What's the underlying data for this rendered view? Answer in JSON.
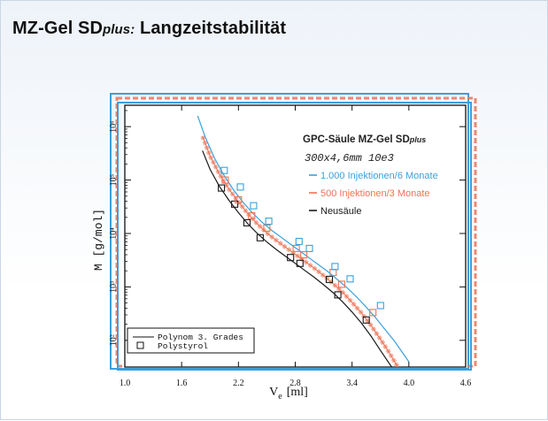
{
  "page": {
    "title_main": "MZ-Gel SD",
    "title_plus": "plus:",
    "title_rest": " Langzeitstabilität"
  },
  "chart_data": {
    "type": "scatter",
    "title": "GPC-Säule MZ-Gel SD",
    "title_plus": "plus",
    "subtitle": "300x4,6mm 10e3",
    "xlabel": "V",
    "xlabel_sub": "e",
    "xlabel_unit": "[ml]",
    "ylabel": "M [g/mol]",
    "xlim": [
      1.0,
      4.6
    ],
    "ylim_log10": [
      1.5,
      6.4
    ],
    "y_scale": "log",
    "x_ticks": [
      "1.0",
      "1.6",
      "2.2",
      "2.8",
      "3.4",
      "4.0",
      "4.6"
    ],
    "x_tick_values": [
      1.0,
      1.6,
      2.2,
      2.8,
      3.4,
      4.0,
      4.6
    ],
    "y_ticks": [
      "10²",
      "10³",
      "10⁴",
      "10⁵",
      "10⁶"
    ],
    "y_tick_exponents": [
      2,
      3,
      4,
      5,
      6
    ],
    "legend_placement": "top-right",
    "legend2_placement": "bottom-left",
    "legend2": {
      "line_label": "Polynom 3. Grades",
      "marker_label": "Polystyrol"
    },
    "colors": {
      "neu": "#1a1a1a",
      "m3": "#ee7355",
      "m6": "#3aa0dd"
    },
    "series": [
      {
        "name": "Neusäule",
        "key": "neu",
        "x": [
          2.02,
          2.16,
          2.29,
          2.43,
          2.75,
          2.85,
          3.16,
          3.25,
          3.55
        ],
        "y": [
          4.85,
          4.55,
          4.2,
          3.92,
          3.55,
          3.44,
          3.14,
          2.85,
          2.38
        ],
        "curve_x": [
          1.82,
          1.9,
          2.0,
          2.1,
          2.2,
          2.3,
          2.4,
          2.5,
          2.6,
          2.7,
          2.8,
          2.9,
          3.0,
          3.1,
          3.2,
          3.3,
          3.4,
          3.5,
          3.6,
          3.7,
          3.8,
          3.92
        ],
        "curve_y": [
          5.55,
          5.2,
          4.88,
          4.62,
          4.39,
          4.18,
          4.0,
          3.84,
          3.7,
          3.57,
          3.44,
          3.31,
          3.18,
          3.04,
          2.89,
          2.72,
          2.53,
          2.32,
          2.08,
          1.81,
          1.55,
          1.25
        ]
      },
      {
        "name": "500 Injektionen/3 Monate",
        "key": "m3",
        "x": [
          2.06,
          2.2,
          2.34,
          2.5,
          2.81,
          2.89,
          3.2,
          3.29,
          3.62
        ],
        "y": [
          5.0,
          4.63,
          4.33,
          4.1,
          3.72,
          3.6,
          3.27,
          3.05,
          2.52
        ],
        "curve_x": [
          1.82,
          1.9,
          2.0,
          2.1,
          2.2,
          2.3,
          2.4,
          2.5,
          2.6,
          2.7,
          2.8,
          2.9,
          3.0,
          3.1,
          3.2,
          3.3,
          3.4,
          3.5,
          3.6,
          3.7,
          3.8,
          3.95
        ],
        "curve_y": [
          5.82,
          5.45,
          5.11,
          4.83,
          4.59,
          4.37,
          4.18,
          4.01,
          3.87,
          3.74,
          3.61,
          3.48,
          3.35,
          3.21,
          3.06,
          2.9,
          2.71,
          2.51,
          2.28,
          2.02,
          1.75,
          1.3
        ]
      },
      {
        "name": "1.000 Injektionen/6 Monate",
        "key": "m6",
        "x": [
          2.05,
          2.22,
          2.36,
          2.52,
          2.84,
          2.95,
          3.22,
          3.38,
          3.7
        ],
        "y": [
          5.18,
          4.87,
          4.52,
          4.23,
          3.85,
          3.72,
          3.38,
          3.15,
          2.65
        ],
        "curve_x": [
          1.77,
          1.85,
          1.95,
          2.05,
          2.15,
          2.25,
          2.35,
          2.45,
          2.55,
          2.65,
          2.75,
          2.85,
          2.95,
          3.05,
          3.15,
          3.25,
          3.35,
          3.45,
          3.55,
          3.65,
          3.75,
          3.85,
          4.0
        ],
        "curve_y": [
          6.2,
          5.8,
          5.4,
          5.08,
          4.81,
          4.58,
          4.38,
          4.21,
          4.06,
          3.93,
          3.8,
          3.67,
          3.54,
          3.41,
          3.28,
          3.13,
          2.98,
          2.81,
          2.62,
          2.42,
          2.2,
          1.98,
          1.6
        ]
      }
    ]
  }
}
